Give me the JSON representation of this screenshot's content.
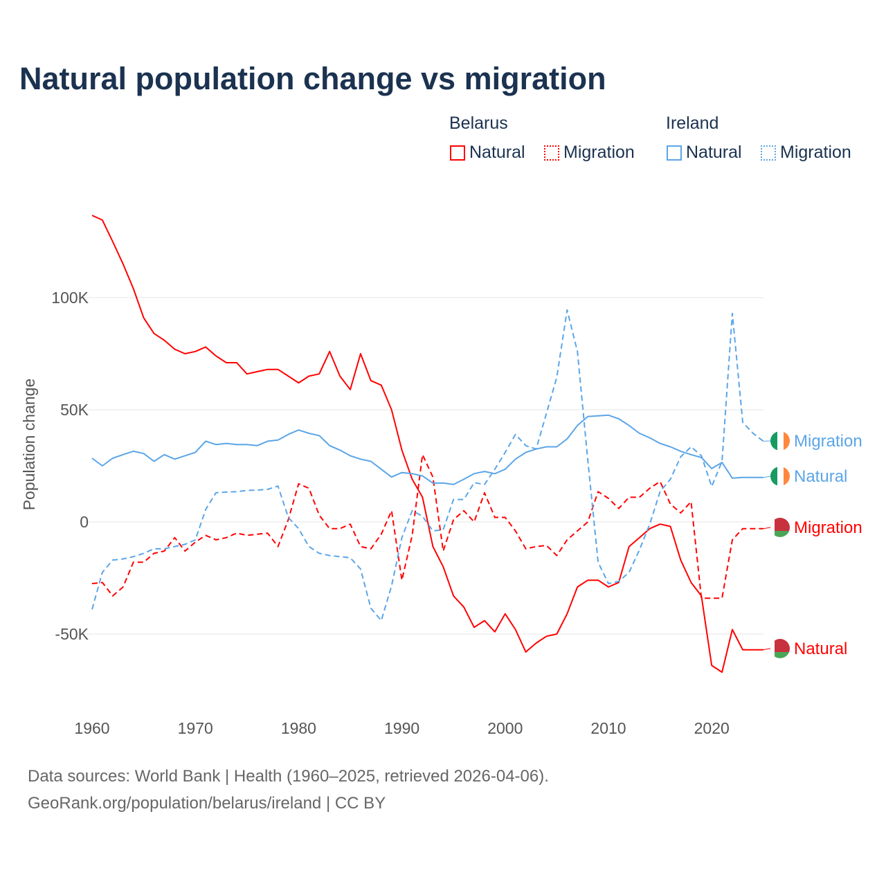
{
  "title": "Natural population change vs migration",
  "legend": {
    "groups": [
      {
        "name": "Belarus",
        "items": [
          {
            "label": "Natural",
            "style": "solid"
          },
          {
            "label": "Migration",
            "style": "dashed"
          }
        ],
        "color": "#ff0000"
      },
      {
        "name": "Ireland",
        "items": [
          {
            "label": "Natural",
            "style": "solid"
          },
          {
            "label": "Migration",
            "style": "dashed"
          }
        ],
        "color": "#5aa5e8"
      }
    ]
  },
  "footer": {
    "line1": "Data sources: World Bank | Health (1960–2025, retrieved 2026-04-06).",
    "line2": "GeoRank.org/population/belarus/ireland | CC BY"
  },
  "chart_data": {
    "type": "line",
    "title": "Natural population change vs migration",
    "xlabel": "",
    "ylabel": "Population change",
    "xlim": [
      1960,
      2025
    ],
    "ylim": [
      -75000,
      140000
    ],
    "x_ticks": [
      1960,
      1970,
      1980,
      1990,
      2000,
      2010,
      2020
    ],
    "x_tick_labels": [
      "1960",
      "1970",
      "1980",
      "1990",
      "2000",
      "2010",
      "2020"
    ],
    "y_ticks": [
      100000,
      50000,
      0,
      -50000
    ],
    "y_tick_labels": [
      "100K",
      "50K",
      "0",
      "-50K"
    ],
    "grid": true,
    "legend_position": "top-right",
    "x_start": 1960,
    "series": [
      {
        "name": "Belarus Natural",
        "end_label": "Natural",
        "flag": "belarus",
        "color": "#ff0000",
        "dash": false,
        "values": [
          136.7,
          134.6,
          125,
          115,
          104,
          91,
          84,
          81,
          77,
          75,
          76,
          78,
          74,
          71,
          71,
          66,
          67,
          68,
          68,
          65,
          62,
          65,
          66,
          76,
          65,
          59,
          75,
          63,
          61,
          50,
          32,
          19,
          11,
          -11,
          -20,
          -33,
          -38,
          -47,
          -44,
          -49,
          -41,
          -48,
          -58,
          -54,
          -51,
          -50,
          -41,
          -29,
          -26,
          -26,
          -29,
          -27,
          -11,
          -7,
          -3,
          -1,
          -2,
          -17,
          -27,
          -33,
          -64,
          -67,
          -48,
          -57,
          -57,
          -57
        ]
      },
      {
        "name": "Belarus Migration",
        "end_label": "Migration",
        "flag": "belarus",
        "color": "#ff0000",
        "dash": true,
        "values": [
          -27.5,
          -27,
          -33,
          -29,
          -18,
          -18,
          -14,
          -13,
          -7,
          -13,
          -9,
          -6,
          -8,
          -7,
          -5,
          -6,
          -5.5,
          -5,
          -11,
          1,
          17,
          15,
          3,
          -3,
          -3,
          -1,
          -11,
          -12,
          -5.5,
          5,
          -26,
          -6,
          30,
          20,
          -13,
          1,
          5,
          0,
          13,
          2,
          2,
          -4,
          -12,
          -11,
          -10.5,
          -15,
          -8,
          -4,
          0,
          13.5,
          10.5,
          6,
          11,
          11,
          15,
          18,
          8,
          4,
          9,
          -34,
          -34,
          -34,
          -8,
          -3,
          -3,
          -3
        ]
      },
      {
        "name": "Ireland Natural",
        "end_label": "Natural",
        "flag": "ireland",
        "color": "#5aa5e8",
        "dash": false,
        "values": [
          28.4,
          25,
          28.4,
          30,
          31.5,
          30.5,
          27,
          30,
          28,
          29.5,
          31,
          36,
          34.5,
          35,
          34.5,
          34.5,
          34,
          36,
          36.5,
          39,
          41,
          39.5,
          38.5,
          34,
          32,
          29.5,
          28,
          27,
          23.5,
          20,
          22,
          21.5,
          20.5,
          17.3,
          17.3,
          16.7,
          19,
          21.5,
          22.5,
          21.5,
          23.5,
          28,
          31,
          32.5,
          33.5,
          33.5,
          37,
          43,
          47,
          47.3,
          47.6,
          46,
          43,
          39.5,
          37.5,
          35,
          33.5,
          31.5,
          30,
          28.7,
          23.8,
          26.5,
          19.5,
          19.8,
          19.8,
          19.8
        ]
      },
      {
        "name": "Ireland Migration",
        "end_label": "Migration",
        "flag": "ireland",
        "color": "#5aa5e8",
        "dash": true,
        "values": [
          -39,
          -22.5,
          -17,
          -16.5,
          -15.5,
          -14,
          -12,
          -12,
          -11,
          -10,
          -8,
          5.5,
          13,
          13.3,
          13.5,
          14,
          14.2,
          14.5,
          16,
          2,
          -3,
          -11,
          -14,
          -15,
          -15.5,
          -16,
          -21,
          -38.5,
          -44,
          -28.5,
          -7,
          5,
          2.5,
          -4,
          -3.5,
          10,
          10,
          17.5,
          16.7,
          23.5,
          31,
          39,
          34,
          32.5,
          48.5,
          64.5,
          94.5,
          76,
          27.5,
          -18,
          -27.5,
          -26.5,
          -22.5,
          -12.5,
          -1,
          13.5,
          19,
          29,
          33.5,
          29.5,
          15.8,
          27,
          93,
          44.4,
          39.5,
          36
        ]
      }
    ],
    "value_unit": "thousands"
  }
}
